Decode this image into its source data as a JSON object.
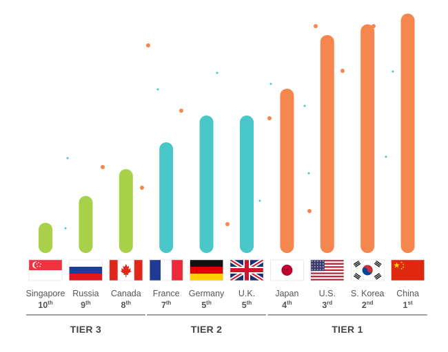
{
  "chart_data": {
    "type": "bar",
    "title": "",
    "xlabel": "",
    "ylabel": "",
    "categories": [
      "Singapore",
      "Russia",
      "Canada",
      "France",
      "Germany",
      "U.K.",
      "Japan",
      "U.S.",
      "S. Korea",
      "China"
    ],
    "values": [
      1.0,
      2.0,
      3.0,
      4.0,
      5.0,
      5.0,
      6.0,
      8.0,
      8.4,
      8.8
    ],
    "ranks": [
      {
        "num": "10",
        "suffix": "th"
      },
      {
        "num": "9",
        "suffix": "th"
      },
      {
        "num": "8",
        "suffix": "th"
      },
      {
        "num": "7",
        "suffix": "th"
      },
      {
        "num": "5",
        "suffix": "th"
      },
      {
        "num": "5",
        "suffix": "th"
      },
      {
        "num": "4",
        "suffix": "th"
      },
      {
        "num": "3",
        "suffix": "rd"
      },
      {
        "num": "2",
        "suffix": "nd"
      },
      {
        "num": "1",
        "suffix": "st"
      }
    ],
    "tier_of_bar": [
      0,
      0,
      0,
      1,
      1,
      1,
      2,
      2,
      2,
      2
    ],
    "tiers": [
      {
        "label": "TIER 3",
        "color": "#a9d049"
      },
      {
        "label": "TIER 2",
        "color": "#4ac7c9"
      },
      {
        "label": "TIER 1",
        "color": "#f5874e"
      }
    ],
    "flags": [
      "singapore-flag",
      "russia-flag",
      "canada-flag",
      "france-flag",
      "germany-flag",
      "uk-flag",
      "japan-flag",
      "us-flag",
      "south-korea-flag",
      "china-flag"
    ]
  }
}
